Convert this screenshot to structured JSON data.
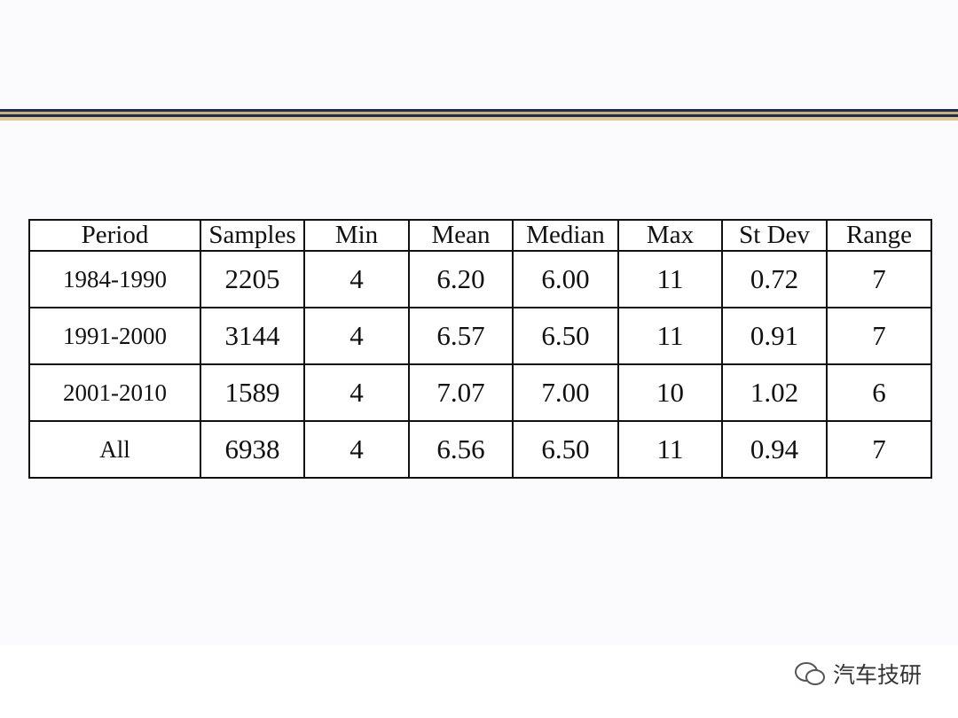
{
  "table": {
    "header": [
      "Period",
      "Samples",
      "Min",
      "Mean",
      "Median",
      "Max",
      "St Dev",
      "Range"
    ],
    "rows": [
      [
        "1984-1990",
        "2205",
        "4",
        "6.20",
        "6.00",
        "11",
        "0.72",
        "7"
      ],
      [
        "1991-2000",
        "3144",
        "4",
        "6.57",
        "6.50",
        "11",
        "0.91",
        "7"
      ],
      [
        "2001-2010",
        "1589",
        "4",
        "7.07",
        "7.00",
        "10",
        "1.02",
        "6"
      ],
      [
        "All",
        "6938",
        "4",
        "6.56",
        "6.50",
        "11",
        "0.94",
        "7"
      ]
    ]
  },
  "watermark": {
    "text": "汽车技研"
  }
}
